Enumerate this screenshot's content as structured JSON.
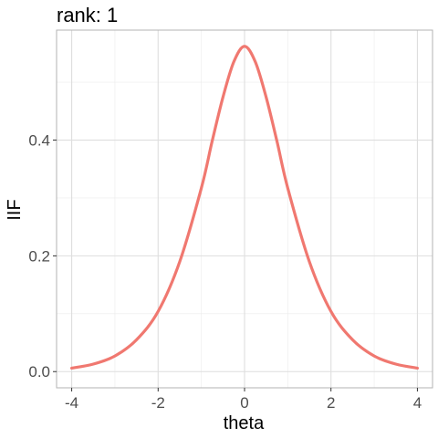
{
  "chart_data": {
    "type": "line",
    "title": "rank: 1",
    "xlabel": "theta",
    "ylabel": "IIF",
    "xlim": [
      -4.35,
      4.35
    ],
    "ylim": [
      -0.028,
      0.59
    ],
    "x_ticks": [
      -4,
      -2,
      0,
      2,
      4
    ],
    "x_tick_labels": [
      "-4",
      "-2",
      "0",
      "2",
      "4"
    ],
    "y_ticks": [
      0.0,
      0.2,
      0.4
    ],
    "y_tick_labels": [
      "0.0",
      "0.2",
      "0.4"
    ],
    "grid": true,
    "legend": "none",
    "line_color": "#F07870",
    "series": [
      {
        "x": [
          -4.0,
          -3.5,
          -3.0,
          -2.5,
          -2.0,
          -1.5,
          -1.0,
          -0.75,
          -0.5,
          -0.25,
          0.0,
          0.25,
          0.5,
          0.75,
          1.0,
          1.5,
          2.0,
          2.5,
          3.0,
          3.5,
          4.0
        ],
        "values": [
          0.006,
          0.013,
          0.027,
          0.055,
          0.104,
          0.19,
          0.317,
          0.398,
          0.474,
          0.535,
          0.562,
          0.535,
          0.474,
          0.398,
          0.317,
          0.19,
          0.104,
          0.055,
          0.027,
          0.013,
          0.006
        ]
      }
    ]
  }
}
